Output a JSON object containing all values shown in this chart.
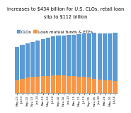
{
  "title_line1": "increases to $434 billion for U.S. CLOs, retail loan",
  "title_line2": "slip to $112 billion",
  "labels": [
    "May-13",
    "Jul-13",
    "Sep-13",
    "Nov-13",
    "Jan-14",
    "Mar-14",
    "May-14",
    "Jul-14",
    "Sep-14",
    "Nov-14",
    "Jan-15",
    "Mar-15",
    "May-15",
    "Jul-15",
    "Sep-15",
    "Nov-15",
    "Jan-16",
    "Mar-16",
    "May-16",
    "Jul-16"
  ],
  "clo_values": [
    300,
    310,
    315,
    320,
    325,
    335,
    345,
    355,
    360,
    365,
    370,
    375,
    385,
    395,
    405,
    415,
    420,
    425,
    430,
    434
  ],
  "loan_values": [
    120,
    130,
    140,
    148,
    152,
    155,
    158,
    160,
    162,
    160,
    158,
    155,
    150,
    148,
    140,
    132,
    125,
    120,
    115,
    112
  ],
  "clo_color": "#5b9bd5",
  "loan_color": "#f79646",
  "background_color": "#ffffff",
  "title_fontsize": 4.8,
  "legend_fontsize": 4.2,
  "tick_fontsize": 3.0,
  "ylim_max": 580
}
